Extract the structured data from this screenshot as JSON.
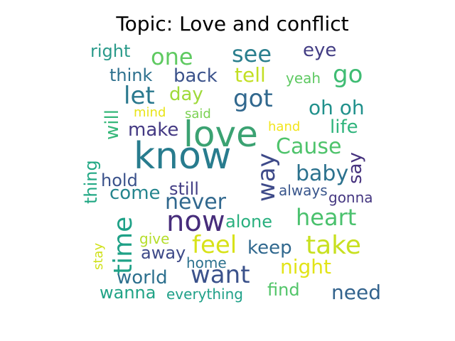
{
  "title": "Topic: Love and conflict",
  "words": [
    {
      "text": "right",
      "color": "#2a9a8a"
    },
    {
      "text": "one",
      "color": "#5fca61"
    },
    {
      "text": "see",
      "color": "#2b7f8e"
    },
    {
      "text": "eye",
      "color": "#433d84"
    },
    {
      "text": "think",
      "color": "#2d708e"
    },
    {
      "text": "back",
      "color": "#3b528b"
    },
    {
      "text": "tell",
      "color": "#c2df23"
    },
    {
      "text": "yeah",
      "color": "#5ec962"
    },
    {
      "text": "go",
      "color": "#3fbc73"
    },
    {
      "text": "let",
      "color": "#2a788e"
    },
    {
      "text": "day",
      "color": "#9fda3a"
    },
    {
      "text": "got",
      "color": "#31688e"
    },
    {
      "text": "will",
      "color": "#35b779"
    },
    {
      "text": "mind",
      "color": "#e8e419"
    },
    {
      "text": "said",
      "color": "#7ad151"
    },
    {
      "text": "oh oh",
      "color": "#21918c"
    },
    {
      "text": "make",
      "color": "#443983"
    },
    {
      "text": "love",
      "color": "#3ba272"
    },
    {
      "text": "hand",
      "color": "#f2e51d"
    },
    {
      "text": "life",
      "color": "#2fb47c"
    },
    {
      "text": "know",
      "color": "#287c8e"
    },
    {
      "text": "Cause",
      "color": "#4ec36b"
    },
    {
      "text": "thing",
      "color": "#22a884"
    },
    {
      "text": "way",
      "color": "#3e4a89"
    },
    {
      "text": "baby",
      "color": "#2c728e"
    },
    {
      "text": "say",
      "color": "#46327e"
    },
    {
      "text": "hold",
      "color": "#3b528b"
    },
    {
      "text": "come",
      "color": "#25858e"
    },
    {
      "text": "still",
      "color": "#433e85"
    },
    {
      "text": "always",
      "color": "#39568c"
    },
    {
      "text": "gonna",
      "color": "#453781"
    },
    {
      "text": "never",
      "color": "#31688e"
    },
    {
      "text": "time",
      "color": "#1fa187"
    },
    {
      "text": "now",
      "color": "#472d7b"
    },
    {
      "text": "alone",
      "color": "#2ab07f"
    },
    {
      "text": "heart",
      "color": "#4ac16d"
    },
    {
      "text": "give",
      "color": "#b5de2b"
    },
    {
      "text": "feel",
      "color": "#d8e219"
    },
    {
      "text": "keep",
      "color": "#30688e"
    },
    {
      "text": "take",
      "color": "#c8e020"
    },
    {
      "text": "stay",
      "color": "#d0e11c"
    },
    {
      "text": "away",
      "color": "#3e4a89"
    },
    {
      "text": "home",
      "color": "#2c718e"
    },
    {
      "text": "night",
      "color": "#e2e418"
    },
    {
      "text": "world",
      "color": "#2d708e"
    },
    {
      "text": "want",
      "color": "#3b528b"
    },
    {
      "text": "wanna",
      "color": "#20a386"
    },
    {
      "text": "everything",
      "color": "#1fa088"
    },
    {
      "text": "find",
      "color": "#52c569"
    },
    {
      "text": "need",
      "color": "#33638d"
    }
  ]
}
